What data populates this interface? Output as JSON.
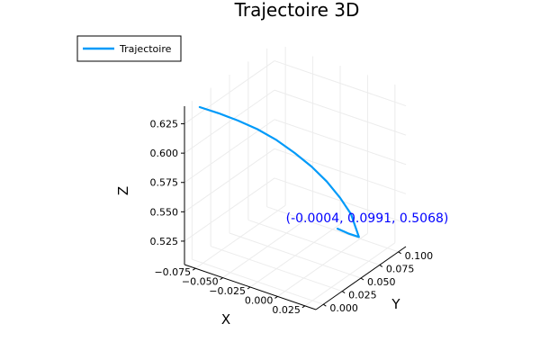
{
  "chart_data": {
    "type": "line3d",
    "title": "Trajectoire 3D",
    "xlabel": "X",
    "ylabel": "Y",
    "zlabel": "Z",
    "xlim": [
      -0.085,
      0.035
    ],
    "ylim": [
      -0.01,
      0.11
    ],
    "zlim": [
      0.505,
      0.64
    ],
    "x_ticks": [
      "−0.075",
      "−0.050",
      "−0.025",
      "0.000",
      "0.025"
    ],
    "x_tick_values": [
      -0.075,
      -0.05,
      -0.025,
      0.0,
      0.025
    ],
    "y_ticks": [
      "0.000",
      "0.025",
      "0.050",
      "0.075",
      "0.100"
    ],
    "y_tick_values": [
      0.0,
      0.025,
      0.05,
      0.075,
      0.1
    ],
    "z_ticks": [
      "0.525",
      "0.550",
      "0.575",
      "0.600",
      "0.625"
    ],
    "z_tick_values": [
      0.525,
      0.55,
      0.575,
      0.6,
      0.625
    ],
    "grid": true,
    "legend_position": "top-left",
    "series": [
      {
        "name": "Trajectoire",
        "color": "#009af9",
        "x": [
          -0.078,
          -0.068,
          -0.058,
          -0.048,
          -0.038,
          -0.029,
          -0.021,
          -0.014,
          -0.008,
          -0.0035,
          -0.0004,
          0.0002,
          0.0
        ],
        "y": [
          0.0,
          0.011,
          0.022,
          0.033,
          0.044,
          0.055,
          0.066,
          0.076,
          0.085,
          0.093,
          0.0991,
          0.085,
          0.07
        ],
        "z": [
          0.637,
          0.63,
          0.622,
          0.613,
          0.602,
          0.589,
          0.575,
          0.56,
          0.544,
          0.528,
          0.5068,
          0.516,
          0.527
        ]
      }
    ],
    "annotations": [
      {
        "text": "(-0.0004, 0.0991, 0.5068)",
        "color": "#0000ff"
      }
    ]
  }
}
